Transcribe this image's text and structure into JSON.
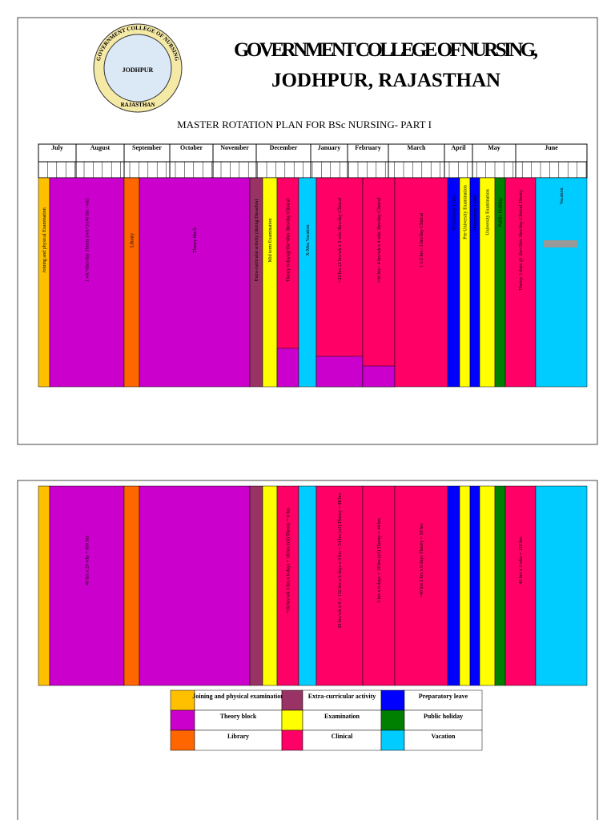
{
  "header": {
    "logo_ring": "GOVERNMENT COLLEGE OF NURSING",
    "logo_center": "JODHPUR",
    "logo_bottom": "RAJASTHAN",
    "title_line1": "GOVERNMENT COLLEGE OF NURSING,",
    "title_line2": "JODHPUR, RAJASTHAN",
    "plan_title": "MASTER ROTATION PLAN FOR BSc NURSING- PART I"
  },
  "months": [
    "July",
    "August",
    "September",
    "October",
    "November",
    "December",
    "January",
    "February",
    "March",
    "April",
    "May",
    "June"
  ],
  "block1": [
    {
      "label": "Joining and physical Examination",
      "color": "#ffc000"
    },
    {
      "label": "1 wk=6hrs/day Theory (wk=3 (40 hrs / wk)",
      "color": "#cc00cc"
    },
    {
      "label": "Library",
      "color": "#ff6600"
    },
    {
      "label": "Theory block",
      "color": "#cc00cc"
    },
    {
      "label": "Extra-curricular activity (during Dussehra)",
      "color": "#993366"
    },
    {
      "label": "Mid term Examination",
      "color": "#ffff00"
    },
    {
      "label": "Theory 6 days@1hr=6hrs 3hrs/day Clinical",
      "color": "#ff0066",
      "lower_color": "#cc00cc"
    },
    {
      "label": "X-Mas Vacation",
      "color": "#00ccff"
    },
    {
      "label": "=22 hrs 12 hrs/wk x 3 wks 3hrs/day Clinical",
      "color": "#ff0066",
      "lower_color": "#cc00cc"
    },
    {
      "label": "=36 hrs / 4 hrs/wk x 4 wks 3hrs/day Clinical",
      "color": "#ff0066",
      "lower_color": "#cc00cc"
    },
    {
      "label": "1 1/2 hrs / 3 hrs/day Clinical",
      "color": "#ff0066"
    },
    {
      "label": "Preparatory Leave",
      "color": "#0000ff"
    },
    {
      "label": "Pre-University Examination",
      "color": "#ffff00"
    },
    {
      "label": "Preparatory Leave",
      "color": "#0000ff"
    },
    {
      "label": "University Examination",
      "color": "#ffff00"
    },
    {
      "label": "Public Holiday",
      "color": "#008000"
    },
    {
      "label": "Theory 5 days @ 1hr=5hrs 3hrs/day Clinical Theory",
      "color": "#ff0066"
    },
    {
      "label": "Vacation",
      "color": "#00ccff"
    }
  ],
  "block2": [
    null,
    "40 hrs x 20 wks = 800 hrs",
    null,
    null,
    null,
    null,
    "=36 hrs/wk 3 hrs x 6 days = 18 hrs (x3) Theory = 6 hrs",
    null,
    "22 hrs/wk x 6 = 132 hrs x 6 days x 3 hrs = 54 hrs (x3) Theory = 88 hrs",
    "3 hrs x 6 days = 18 hrs (x3) Theory = 44 hrs",
    "=40 hrs 2 hrs x 6 days Theory = 50 hrs",
    null,
    null,
    null,
    null,
    null,
    "40 hrs x 3 wks = 120 hrs",
    null
  ],
  "legend": [
    {
      "label": "Joining and physical examination",
      "color": "#ffc000"
    },
    {
      "label": "Extra-curricular activity",
      "color": "#993366"
    },
    {
      "label": "Preparatory leave",
      "color": "#0000ff"
    },
    {
      "label": "Theory block",
      "color": "#cc00cc"
    },
    {
      "label": "Examination",
      "color": "#ffff00"
    },
    {
      "label": "Public holiday",
      "color": "#008000"
    },
    {
      "label": "Library",
      "color": "#ff6600"
    },
    {
      "label": "Clinical",
      "color": "#ff0066"
    },
    {
      "label": "Vacation",
      "color": "#00ccff"
    }
  ]
}
